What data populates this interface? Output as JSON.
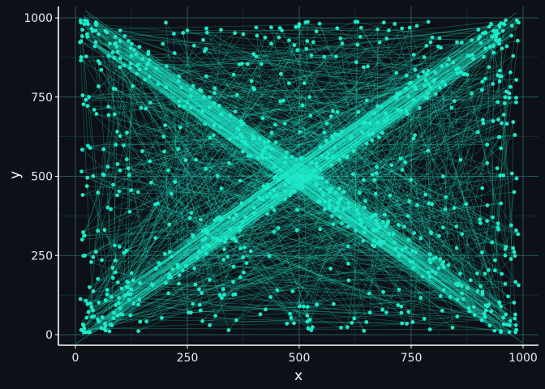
{
  "chart_data": {
    "type": "scatter",
    "xlabel": "x",
    "ylabel": "y",
    "xlim": [
      0,
      1000
    ],
    "ylim": [
      0,
      1000
    ],
    "x_ticks": [
      0,
      250,
      500,
      750,
      1000
    ],
    "y_ticks": [
      0,
      250,
      500,
      750,
      1000
    ],
    "grid": true,
    "connected_points": true,
    "point_count_estimate": 1000,
    "colors": {
      "background": "#0d1117",
      "points": "#1de9c8",
      "lines": "#1de9c8",
      "grid": "#2a6a6a",
      "axis": "#ffffff",
      "text": "#e8edf2"
    },
    "sample_points": [
      {
        "x": 20,
        "y": 980
      },
      {
        "x": 45,
        "y": 960
      },
      {
        "x": 90,
        "y": 920
      },
      {
        "x": 150,
        "y": 870
      },
      {
        "x": 230,
        "y": 800
      },
      {
        "x": 310,
        "y": 730
      },
      {
        "x": 400,
        "y": 620
      },
      {
        "x": 470,
        "y": 560
      },
      {
        "x": 520,
        "y": 500
      },
      {
        "x": 590,
        "y": 430
      },
      {
        "x": 680,
        "y": 340
      },
      {
        "x": 760,
        "y": 260
      },
      {
        "x": 850,
        "y": 160
      },
      {
        "x": 920,
        "y": 90
      },
      {
        "x": 970,
        "y": 30
      },
      {
        "x": 985,
        "y": 15
      },
      {
        "x": 20,
        "y": 20
      },
      {
        "x": 60,
        "y": 55
      },
      {
        "x": 120,
        "y": 110
      },
      {
        "x": 210,
        "y": 190
      },
      {
        "x": 300,
        "y": 280
      },
      {
        "x": 380,
        "y": 370
      },
      {
        "x": 450,
        "y": 440
      },
      {
        "x": 505,
        "y": 495
      },
      {
        "x": 560,
        "y": 560
      },
      {
        "x": 640,
        "y": 640
      },
      {
        "x": 720,
        "y": 710
      },
      {
        "x": 800,
        "y": 800
      },
      {
        "x": 880,
        "y": 880
      },
      {
        "x": 940,
        "y": 940
      },
      {
        "x": 975,
        "y": 975
      },
      {
        "x": 990,
        "y": 985
      },
      {
        "x": 30,
        "y": 750
      },
      {
        "x": 80,
        "y": 30
      },
      {
        "x": 100,
        "y": 960
      },
      {
        "x": 960,
        "y": 750
      },
      {
        "x": 960,
        "y": 250
      },
      {
        "x": 980,
        "y": 450
      },
      {
        "x": 15,
        "y": 300
      },
      {
        "x": 90,
        "y": 600
      },
      {
        "x": 920,
        "y": 600
      },
      {
        "x": 250,
        "y": 960
      },
      {
        "x": 700,
        "y": 960
      },
      {
        "x": 300,
        "y": 30
      },
      {
        "x": 650,
        "y": 40
      },
      {
        "x": 500,
        "y": 980
      },
      {
        "x": 520,
        "y": 20
      },
      {
        "x": 140,
        "y": 450
      }
    ]
  }
}
